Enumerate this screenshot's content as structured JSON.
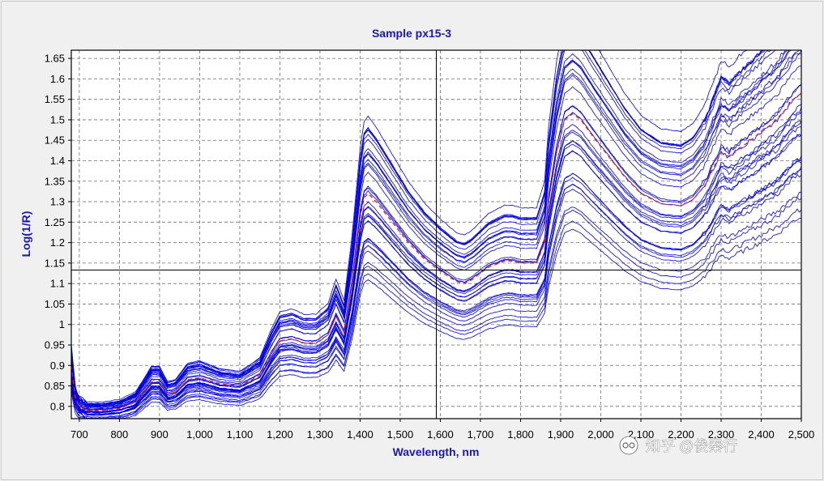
{
  "colors": {
    "background": "#f0f0f0",
    "plot_background": "#ffffff",
    "grid": "#707070",
    "spectra": "#0000e0",
    "mean_spectrum": "#e01e3c",
    "crosshair": "#000000",
    "title": "#1a1aa8"
  },
  "watermark": {
    "text": "知乎 @俊秦行",
    "icon": "wechat-channel-icon"
  },
  "chart_data": {
    "type": "line",
    "title": "Sample px15-3",
    "xlabel": "Wavelength, nm",
    "ylabel": "Log(1/R)",
    "xlim": [
      680,
      2500
    ],
    "ylim": [
      0.77,
      1.67
    ],
    "grid": true,
    "xticks": [
      700,
      800,
      900,
      1000,
      1100,
      1200,
      1300,
      1400,
      1500,
      1600,
      1700,
      1800,
      1900,
      2000,
      2100,
      2200,
      2300,
      2400,
      2500
    ],
    "xtick_labels": [
      "700",
      "800",
      "900",
      "1,000",
      "1,100",
      "1,200",
      "1,300",
      "1,400",
      "1,500",
      "1,600",
      "1,700",
      "1,800",
      "1,900",
      "2,000",
      "2,100",
      "2,200",
      "2,300",
      "2,400",
      "2,500"
    ],
    "yticks": [
      0.8,
      0.85,
      0.9,
      0.95,
      1.0,
      1.05,
      1.1,
      1.15,
      1.2,
      1.25,
      1.3,
      1.35,
      1.4,
      1.45,
      1.5,
      1.55,
      1.6,
      1.65
    ],
    "ytick_labels": [
      "0.8",
      "0.85",
      "0.9",
      "0.95",
      "1",
      "1.05",
      "1.1",
      "1.15",
      "1.2",
      "1.25",
      "1.3",
      "1.35",
      "1.4",
      "1.45",
      "1.5",
      "1.55",
      "1.6",
      "1.65"
    ],
    "crosshair": {
      "x": 1590,
      "y": 1.133
    },
    "series_count": 36,
    "mean_series": {
      "name": "mean spectrum",
      "x": [
        680,
        690,
        700,
        720,
        760,
        800,
        840,
        880,
        900,
        920,
        940,
        970,
        1000,
        1050,
        1100,
        1150,
        1180,
        1200,
        1230,
        1260,
        1290,
        1320,
        1340,
        1360,
        1380,
        1400,
        1410,
        1420,
        1440,
        1480,
        1520,
        1560,
        1600,
        1640,
        1660,
        1680,
        1720,
        1760,
        1780,
        1800,
        1840,
        1860,
        1870,
        1890,
        1910,
        1930,
        1950,
        1980,
        2020,
        2060,
        2100,
        2150,
        2200,
        2230,
        2260,
        2280,
        2300,
        2320,
        2360,
        2400,
        2440,
        2480,
        2500
      ],
      "y": [
        0.9,
        0.82,
        0.8,
        0.79,
        0.79,
        0.795,
        0.81,
        0.86,
        0.86,
        0.83,
        0.835,
        0.865,
        0.87,
        0.855,
        0.85,
        0.875,
        0.93,
        0.96,
        0.965,
        0.955,
        0.955,
        0.975,
        1.02,
        0.98,
        1.1,
        1.26,
        1.31,
        1.32,
        1.3,
        1.25,
        1.2,
        1.16,
        1.13,
        1.105,
        1.1,
        1.11,
        1.14,
        1.155,
        1.155,
        1.15,
        1.15,
        1.2,
        1.3,
        1.42,
        1.5,
        1.515,
        1.5,
        1.46,
        1.41,
        1.36,
        1.32,
        1.295,
        1.29,
        1.305,
        1.34,
        1.38,
        1.42,
        1.41,
        1.44,
        1.47,
        1.5,
        1.55,
        1.565
      ]
    }
  }
}
